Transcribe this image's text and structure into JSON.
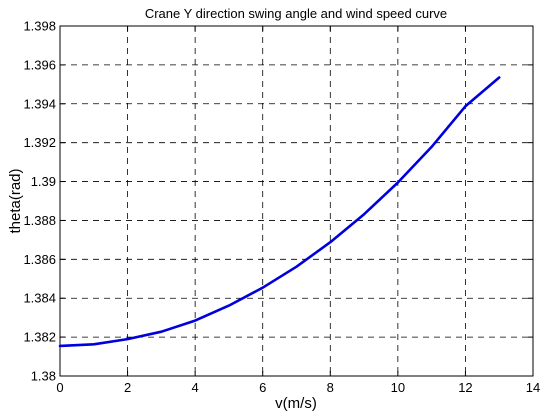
{
  "chart_data": {
    "type": "line",
    "title": "Crane Y direction swing angle and wind speed curve",
    "xlabel": "v(m/s)",
    "ylabel": "theta(rad)",
    "xlim": [
      0,
      14
    ],
    "ylim": [
      1.38,
      1.398
    ],
    "grid": true,
    "x_ticks": [
      "0",
      "2",
      "4",
      "6",
      "8",
      "10",
      "12",
      "14"
    ],
    "y_ticks": [
      "1.38",
      "1.382",
      "1.384",
      "1.386",
      "1.388",
      "1.39",
      "1.392",
      "1.394",
      "1.396",
      "1.398"
    ],
    "series": [
      {
        "color": "#0000dd",
        "x": [
          0,
          1,
          2,
          3,
          4,
          5,
          6,
          7,
          8,
          9,
          10,
          11,
          12,
          13
        ],
        "y": [
          1.38155,
          1.38163,
          1.3819,
          1.38228,
          1.38285,
          1.38362,
          1.38454,
          1.38562,
          1.38688,
          1.38832,
          1.38995,
          1.39178,
          1.39387,
          1.39535
        ]
      }
    ]
  }
}
